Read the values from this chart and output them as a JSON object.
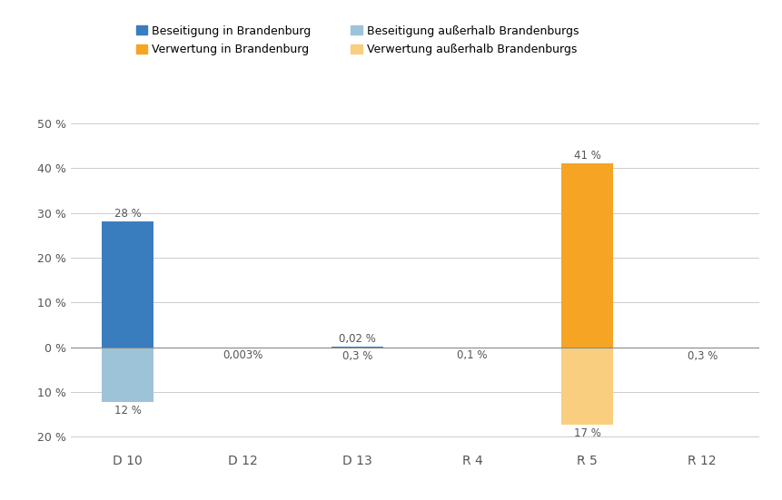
{
  "categories": [
    "D 10",
    "D 12",
    "D 13",
    "R 4",
    "R 5",
    "R 12"
  ],
  "series": {
    "Beseitigung in Brandenburg": [
      28.02,
      0.0,
      0.02,
      0.0,
      0.0,
      0.0
    ],
    "Verwertung in Brandenburg": [
      0.0,
      0.0,
      0.0,
      0.0,
      41.0,
      0.0
    ],
    "Beseitigung außerhalb Brandenburgs": [
      -12.3,
      -0.003,
      -0.3,
      -0.1,
      0.0,
      -0.3
    ],
    "Verwertung außerhalb Brandenburgs": [
      0.0,
      0.0,
      0.0,
      0.0,
      -17.4,
      0.0
    ]
  },
  "colors": {
    "Beseitigung in Brandenburg": "#3A7DBF",
    "Verwertung in Brandenburg": "#F5A523",
    "Beseitigung außerhalb Brandenburgs": "#9DC3D8",
    "Verwertung außerhalb Brandenburgs": "#F9CE7E"
  },
  "pos_label_text": {
    "Beseitigung in Brandenburg": [
      "28 %",
      "",
      "0,02 %",
      "",
      "",
      ""
    ],
    "Verwertung in Brandenburg": [
      "",
      "",
      "",
      "",
      "41 %",
      ""
    ]
  },
  "neg_label_text": {
    "Beseitigung außerhalb Brandenburgs": [
      "12 %",
      "0,003%",
      "0,3 %",
      "0,1 %",
      "",
      "0,3 %"
    ],
    "Verwertung außerhalb Brandenburgs": [
      "",
      "",
      "",
      "",
      "17 %",
      ""
    ]
  },
  "ylim": [
    -23,
    53
  ],
  "yticks": [
    -20,
    -10,
    0,
    10,
    20,
    30,
    40,
    50
  ],
  "ytick_labels": [
    "20 %",
    "10 %",
    "0 %",
    "10 %",
    "20 %",
    "30 %",
    "40 %",
    "50 %"
  ],
  "legend_row1": [
    "Beseitigung in Brandenburg",
    "Verwertung in Brandenburg"
  ],
  "legend_row2": [
    "Beseitigung außerhalb Brandenburgs",
    "Verwertung außerhalb Brandenburgs"
  ],
  "background_color": "#FFFFFF",
  "label_fontsize": 8.5,
  "tick_fontsize": 9,
  "bar_width": 0.45
}
